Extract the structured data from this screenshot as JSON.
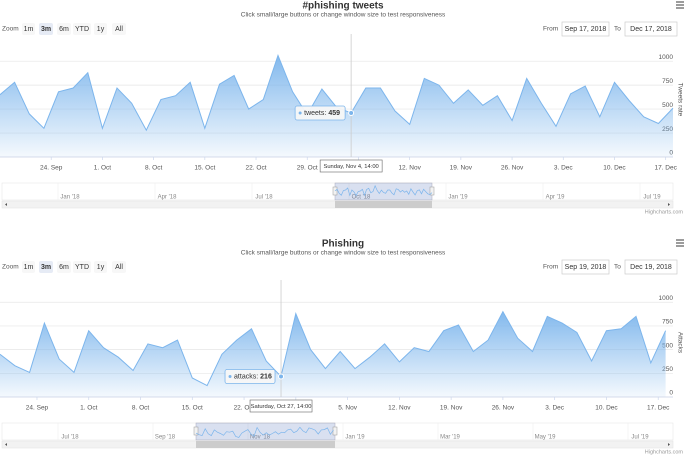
{
  "chart_data": [
    {
      "type": "area",
      "title": "#phishing tweets",
      "subtitle": "Click small/large buttons or change window size to test responsiveness",
      "zoom_label": "Zoom",
      "buttons": [
        "1m",
        "3m",
        "6m",
        "YTD",
        "1y",
        "All"
      ],
      "selected_button": 1,
      "from_label": "From",
      "from": "Sep 17, 2018",
      "to_label": "To",
      "to": "Dec 17, 2018",
      "y_axis_title": "Tweets rate",
      "color": "#7cb5ec",
      "x": [
        "2018-09-17",
        "2018-09-19",
        "2018-09-21",
        "2018-09-23",
        "2018-09-25",
        "2018-09-27",
        "2018-09-29",
        "2018-10-01",
        "2018-10-03",
        "2018-10-05",
        "2018-10-07",
        "2018-10-09",
        "2018-10-11",
        "2018-10-13",
        "2018-10-15",
        "2018-10-17",
        "2018-10-19",
        "2018-10-21",
        "2018-10-23",
        "2018-10-25",
        "2018-10-27",
        "2018-10-29",
        "2018-10-31",
        "2018-11-02",
        "2018-11-04",
        "2018-11-06",
        "2018-11-08",
        "2018-11-10",
        "2018-11-12",
        "2018-11-14",
        "2018-11-16",
        "2018-11-18",
        "2018-11-20",
        "2018-11-22",
        "2018-11-24",
        "2018-11-26",
        "2018-11-28",
        "2018-11-30",
        "2018-12-02",
        "2018-12-04",
        "2018-12-06",
        "2018-12-08",
        "2018-12-10",
        "2018-12-12",
        "2018-12-14",
        "2018-12-16",
        "2018-12-18"
      ],
      "series": [
        {
          "name": "tweets",
          "color": "#7cb5ec",
          "values": [
            650,
            780,
            450,
            300,
            680,
            720,
            880,
            300,
            720,
            560,
            280,
            600,
            640,
            780,
            300,
            760,
            850,
            500,
            600,
            1060,
            680,
            440,
            710,
            520,
            459,
            720,
            720,
            480,
            340,
            820,
            750,
            560,
            700,
            540,
            640,
            380,
            820,
            560,
            320,
            660,
            740,
            420,
            780,
            590,
            420,
            350,
            510
          ]
        }
      ],
      "xlim": [
        "2018-09-17",
        "2018-12-18"
      ],
      "xticks": [
        {
          "value": "2018-09-24",
          "label": "24. Sep"
        },
        {
          "value": "2018-10-01",
          "label": "1. Oct"
        },
        {
          "value": "2018-10-08",
          "label": "8. Oct"
        },
        {
          "value": "2018-10-15",
          "label": "15. Oct"
        },
        {
          "value": "2018-10-22",
          "label": "22. Oct"
        },
        {
          "value": "2018-10-29",
          "label": "29. Oct"
        },
        {
          "value": "2018-11-05",
          "label": "5. Nov"
        },
        {
          "value": "2018-11-12",
          "label": "12. Nov"
        },
        {
          "value": "2018-11-19",
          "label": "19. Nov"
        },
        {
          "value": "2018-11-26",
          "label": "26. Nov"
        },
        {
          "value": "2018-12-03",
          "label": "3. Dec"
        },
        {
          "value": "2018-12-10",
          "label": "10. Dec"
        },
        {
          "value": "2018-12-17",
          "label": "17. Dec"
        }
      ],
      "ylim": [
        0,
        1200
      ],
      "yticks": [
        0,
        250,
        500,
        750,
        1000
      ],
      "grid": true,
      "tooltip": {
        "point_index": 24,
        "series_label": "tweets:",
        "date_label": "Sunday, Nov 4, 14:00"
      },
      "navigator_labels": [
        "Jan '18",
        "Apr '18",
        "Jul '18",
        "Oct '18",
        "Jan '19",
        "Apr '19",
        "Jul '19"
      ],
      "credit": "Highcharts.com"
    },
    {
      "type": "area",
      "title": "Phishing",
      "subtitle": "Click small/large buttons or change window size to test responsiveness",
      "zoom_label": "Zoom",
      "buttons": [
        "1m",
        "3m",
        "6m",
        "YTD",
        "1y",
        "All"
      ],
      "selected_button": 1,
      "from_label": "From",
      "from": "Sep 19, 2018",
      "to_label": "To",
      "to": "Dec 19, 2018",
      "y_axis_title": "Attacks",
      "color": "#7cb5ec",
      "x": [
        "2018-09-19",
        "2018-09-21",
        "2018-09-23",
        "2018-09-25",
        "2018-09-27",
        "2018-09-29",
        "2018-10-01",
        "2018-10-03",
        "2018-10-05",
        "2018-10-07",
        "2018-10-09",
        "2018-10-11",
        "2018-10-13",
        "2018-10-15",
        "2018-10-17",
        "2018-10-19",
        "2018-10-21",
        "2018-10-23",
        "2018-10-25",
        "2018-10-27",
        "2018-10-29",
        "2018-10-31",
        "2018-11-02",
        "2018-11-04",
        "2018-11-06",
        "2018-11-08",
        "2018-11-10",
        "2018-11-12",
        "2018-11-14",
        "2018-11-16",
        "2018-11-18",
        "2018-11-20",
        "2018-11-22",
        "2018-11-24",
        "2018-11-26",
        "2018-11-28",
        "2018-11-30",
        "2018-12-02",
        "2018-12-04",
        "2018-12-06",
        "2018-12-08",
        "2018-12-10",
        "2018-12-12",
        "2018-12-14",
        "2018-12-16",
        "2018-12-18"
      ],
      "series": [
        {
          "name": "attacks",
          "color": "#7cb5ec",
          "values": [
            450,
            330,
            260,
            780,
            400,
            260,
            700,
            520,
            420,
            280,
            560,
            520,
            600,
            200,
            120,
            450,
            600,
            720,
            380,
            216,
            880,
            500,
            300,
            480,
            300,
            420,
            560,
            370,
            520,
            480,
            700,
            760,
            480,
            600,
            900,
            620,
            480,
            850,
            780,
            680,
            380,
            700,
            720,
            850,
            360,
            700
          ]
        }
      ],
      "xlim": [
        "2018-09-19",
        "2018-12-19"
      ],
      "xticks": [
        {
          "value": "2018-09-24",
          "label": "24. Sep"
        },
        {
          "value": "2018-10-01",
          "label": "1. Oct"
        },
        {
          "value": "2018-10-08",
          "label": "8. Oct"
        },
        {
          "value": "2018-10-15",
          "label": "15. Oct"
        },
        {
          "value": "2018-10-22",
          "label": "22. Oct"
        },
        {
          "value": "2018-10-29",
          "label": "29. Oct"
        },
        {
          "value": "2018-11-05",
          "label": "5. Nov"
        },
        {
          "value": "2018-11-12",
          "label": "12. Nov"
        },
        {
          "value": "2018-11-19",
          "label": "19. Nov"
        },
        {
          "value": "2018-11-26",
          "label": "26. Nov"
        },
        {
          "value": "2018-12-03",
          "label": "3. Dec"
        },
        {
          "value": "2018-12-10",
          "label": "10. Dec"
        },
        {
          "value": "2018-12-17",
          "label": "17. Dec"
        }
      ],
      "ylim": [
        0,
        1150
      ],
      "yticks": [
        0,
        250,
        500,
        750,
        1000
      ],
      "grid": true,
      "tooltip": {
        "point_index": 19,
        "series_label": "attacks:",
        "date_label": "Saturday, Oct 27, 14:00"
      },
      "navigator_labels": [
        "Jul '18",
        "Sep '18",
        "Nov '18",
        "Jan '19",
        "Mar '19",
        "May '19",
        "Jul '19"
      ],
      "credit": "Highcharts.com"
    }
  ]
}
